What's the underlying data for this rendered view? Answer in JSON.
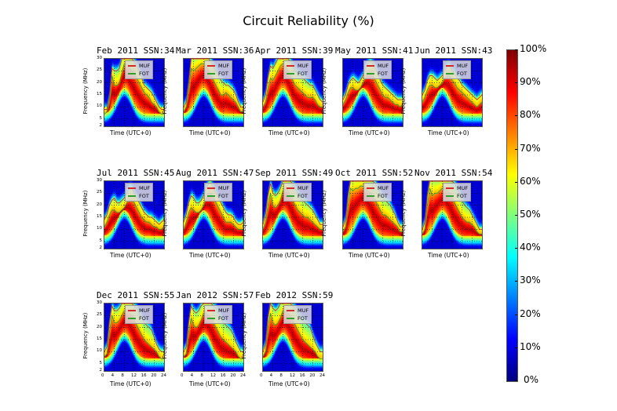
{
  "title": "Circuit Reliability (%)",
  "chart_data": {
    "type": "heatmap",
    "title": "Circuit Reliability (%)",
    "xlabel": "Time (UTC+0)",
    "ylabel": "Frequency (MHz)",
    "xlim": [
      0,
      24
    ],
    "ylim": [
      2,
      30
    ],
    "xticks": [
      "0",
      "4",
      "8",
      "12",
      "16",
      "20",
      "24"
    ],
    "yticks": [
      "2",
      "5",
      "10",
      "15",
      "20",
      "25",
      "30"
    ],
    "legend": [
      {
        "label": "MUF",
        "color": "#d62728"
      },
      {
        "label": "FOT",
        "color": "#2ca02c"
      }
    ],
    "legend_placement": "upper-right",
    "colorbar": {
      "label_ticks": [
        "0%",
        "10%",
        "20%",
        "30%",
        "40%",
        "50%",
        "60%",
        "70%",
        "80%",
        "90%",
        "100%"
      ],
      "range": [
        0,
        100
      ],
      "colormap": "jet"
    },
    "panels": [
      {
        "title": "Feb 2011 SSN:34",
        "month": "Feb 2011",
        "ssn": 34,
        "muf": [
          9,
          9,
          14,
          26,
          25,
          25,
          26,
          30,
          30,
          30,
          30,
          30,
          29,
          27,
          25,
          22,
          19,
          18,
          17,
          16,
          14,
          12,
          10,
          9,
          9
        ],
        "fot": [
          7,
          8,
          12,
          23,
          19,
          19,
          20,
          24,
          28,
          28,
          26,
          25,
          24,
          22,
          20,
          18,
          16,
          15,
          14,
          12,
          11,
          10,
          8,
          7,
          7
        ]
      },
      {
        "title": "Mar 2011 SSN:36",
        "month": "Mar 2011",
        "ssn": 36,
        "muf": [
          10,
          12,
          20,
          30,
          30,
          30,
          30,
          30,
          30,
          30,
          30,
          29,
          27,
          25,
          23,
          21,
          20,
          19,
          19,
          18,
          17,
          15,
          12,
          10,
          10
        ],
        "fot": [
          8,
          10,
          17,
          26,
          25,
          26,
          27,
          28,
          28,
          27,
          25,
          23,
          21,
          19,
          17,
          15,
          15,
          16,
          15,
          14,
          13,
          12,
          10,
          8,
          8
        ]
      },
      {
        "title": "Apr 2011 SSN:39",
        "month": "Apr 2011",
        "ssn": 39,
        "muf": [
          12,
          15,
          22,
          27,
          26,
          28,
          30,
          30,
          30,
          30,
          30,
          29,
          27,
          25,
          24,
          23,
          22,
          21,
          20,
          19,
          19,
          17,
          15,
          13,
          12
        ],
        "fot": [
          10,
          12,
          18,
          22,
          21,
          23,
          25,
          27,
          28,
          27,
          25,
          23,
          21,
          19,
          18,
          17,
          16,
          15,
          14,
          14,
          14,
          13,
          11,
          10,
          10
        ]
      },
      {
        "title": "May 2011 SSN:41",
        "month": "May 2011",
        "ssn": 41,
        "muf": [
          13,
          15,
          19,
          21,
          22,
          21,
          20,
          21,
          23,
          26,
          28,
          29,
          28,
          26,
          24,
          21,
          19,
          18,
          17,
          16,
          15,
          14,
          13,
          13,
          13
        ],
        "fot": [
          11,
          13,
          16,
          18,
          18,
          17,
          17,
          18,
          20,
          22,
          24,
          24,
          23,
          21,
          19,
          17,
          15,
          14,
          14,
          13,
          12,
          11,
          11,
          10,
          11
        ]
      },
      {
        "title": "Jun 2011 SSN:43",
        "month": "Jun 2011",
        "ssn": 43,
        "muf": [
          15,
          17,
          21,
          23,
          23,
          22,
          21,
          22,
          23,
          25,
          27,
          27,
          25,
          24,
          22,
          21,
          19,
          18,
          17,
          16,
          15,
          14,
          13,
          14,
          15
        ],
        "fot": [
          12,
          14,
          17,
          19,
          19,
          18,
          18,
          19,
          20,
          22,
          23,
          23,
          21,
          20,
          18,
          17,
          16,
          15,
          14,
          13,
          12,
          11,
          10,
          11,
          12
        ]
      },
      {
        "title": "Jul 2011 SSN:45",
        "month": "Jul 2011",
        "ssn": 45,
        "muf": [
          14,
          16,
          20,
          22,
          23,
          21,
          21,
          22,
          23,
          25,
          27,
          27,
          25,
          23,
          21,
          19,
          17,
          16,
          15,
          15,
          14,
          13,
          12,
          13,
          14
        ],
        "fot": [
          11,
          13,
          16,
          18,
          18,
          17,
          17,
          18,
          19,
          21,
          22,
          22,
          21,
          19,
          17,
          15,
          14,
          13,
          13,
          12,
          11,
          11,
          10,
          10,
          11
        ]
      },
      {
        "title": "Aug 2011 SSN:47",
        "month": "Aug 2011",
        "ssn": 47,
        "muf": [
          13,
          16,
          21,
          24,
          23,
          21,
          21,
          22,
          24,
          27,
          29,
          29,
          27,
          25,
          23,
          21,
          19,
          17,
          16,
          16,
          15,
          13,
          12,
          12,
          13
        ],
        "fot": [
          10,
          13,
          17,
          19,
          18,
          17,
          17,
          18,
          20,
          23,
          25,
          25,
          23,
          21,
          19,
          17,
          15,
          13,
          13,
          13,
          12,
          11,
          10,
          10,
          10
        ]
      },
      {
        "title": "Sep 2011 SSN:49",
        "month": "Sep 2011",
        "ssn": 49,
        "muf": [
          12,
          16,
          24,
          29,
          25,
          24,
          25,
          27,
          30,
          30,
          30,
          30,
          29,
          27,
          25,
          23,
          22,
          21,
          20,
          19,
          18,
          16,
          14,
          12,
          12
        ],
        "fot": [
          10,
          13,
          20,
          25,
          20,
          19,
          20,
          22,
          26,
          27,
          26,
          24,
          22,
          20,
          18,
          17,
          16,
          15,
          15,
          14,
          13,
          12,
          11,
          10,
          10
        ]
      },
      {
        "title": "Oct 2011 SSN:52",
        "month": "Oct 2011",
        "ssn": 52,
        "muf": [
          11,
          14,
          24,
          30,
          30,
          30,
          30,
          30,
          30,
          30,
          30,
          30,
          30,
          29,
          27,
          25,
          23,
          22,
          21,
          20,
          18,
          16,
          13,
          11,
          11
        ],
        "fot": [
          9,
          11,
          20,
          27,
          26,
          27,
          27,
          28,
          28,
          27,
          26,
          25,
          23,
          22,
          20,
          18,
          16,
          16,
          15,
          14,
          13,
          12,
          11,
          9,
          9
        ]
      },
      {
        "title": "Nov 2011 SSN:54",
        "month": "Nov 2011",
        "ssn": 54,
        "muf": [
          10,
          13,
          24,
          30,
          30,
          30,
          30,
          30,
          30,
          30,
          30,
          30,
          30,
          29,
          27,
          25,
          22,
          20,
          19,
          18,
          16,
          14,
          12,
          10,
          10
        ],
        "fot": [
          8,
          10,
          20,
          27,
          24,
          25,
          25,
          26,
          27,
          27,
          26,
          25,
          23,
          21,
          19,
          17,
          15,
          14,
          13,
          13,
          12,
          11,
          9,
          8,
          8
        ]
      },
      {
        "title": "Dec 2011 SSN:55",
        "month": "Dec 2011",
        "ssn": 55,
        "muf": [
          10,
          12,
          22,
          29,
          27,
          27,
          28,
          30,
          30,
          30,
          30,
          30,
          29,
          28,
          26,
          24,
          22,
          21,
          20,
          19,
          16,
          13,
          11,
          10,
          10
        ],
        "fot": [
          8,
          9,
          18,
          25,
          22,
          22,
          23,
          25,
          27,
          27,
          26,
          25,
          23,
          21,
          19,
          17,
          15,
          14,
          13,
          12,
          11,
          10,
          8,
          7,
          7
        ]
      },
      {
        "title": "Jan 2012 SSN:57",
        "month": "Jan 2012",
        "ssn": 57,
        "muf": [
          10,
          12,
          22,
          29,
          27,
          26,
          27,
          29,
          30,
          30,
          30,
          30,
          29,
          28,
          26,
          24,
          22,
          21,
          20,
          19,
          17,
          14,
          12,
          10,
          10
        ],
        "fot": [
          8,
          9,
          18,
          24,
          21,
          20,
          21,
          23,
          26,
          26,
          25,
          24,
          22,
          20,
          18,
          16,
          15,
          14,
          13,
          12,
          11,
          10,
          8,
          7,
          7
        ]
      },
      {
        "title": "Feb 2012 SSN:59",
        "month": "Feb 2012",
        "ssn": 59,
        "muf": [
          10,
          13,
          24,
          30,
          28,
          27,
          28,
          30,
          30,
          30,
          30,
          30,
          29,
          28,
          26,
          24,
          23,
          22,
          21,
          20,
          17,
          14,
          12,
          10,
          10
        ],
        "fot": [
          8,
          10,
          20,
          26,
          22,
          21,
          22,
          24,
          27,
          27,
          26,
          25,
          23,
          21,
          19,
          17,
          15,
          14,
          13,
          12,
          11,
          10,
          8,
          7,
          7
        ]
      }
    ]
  }
}
